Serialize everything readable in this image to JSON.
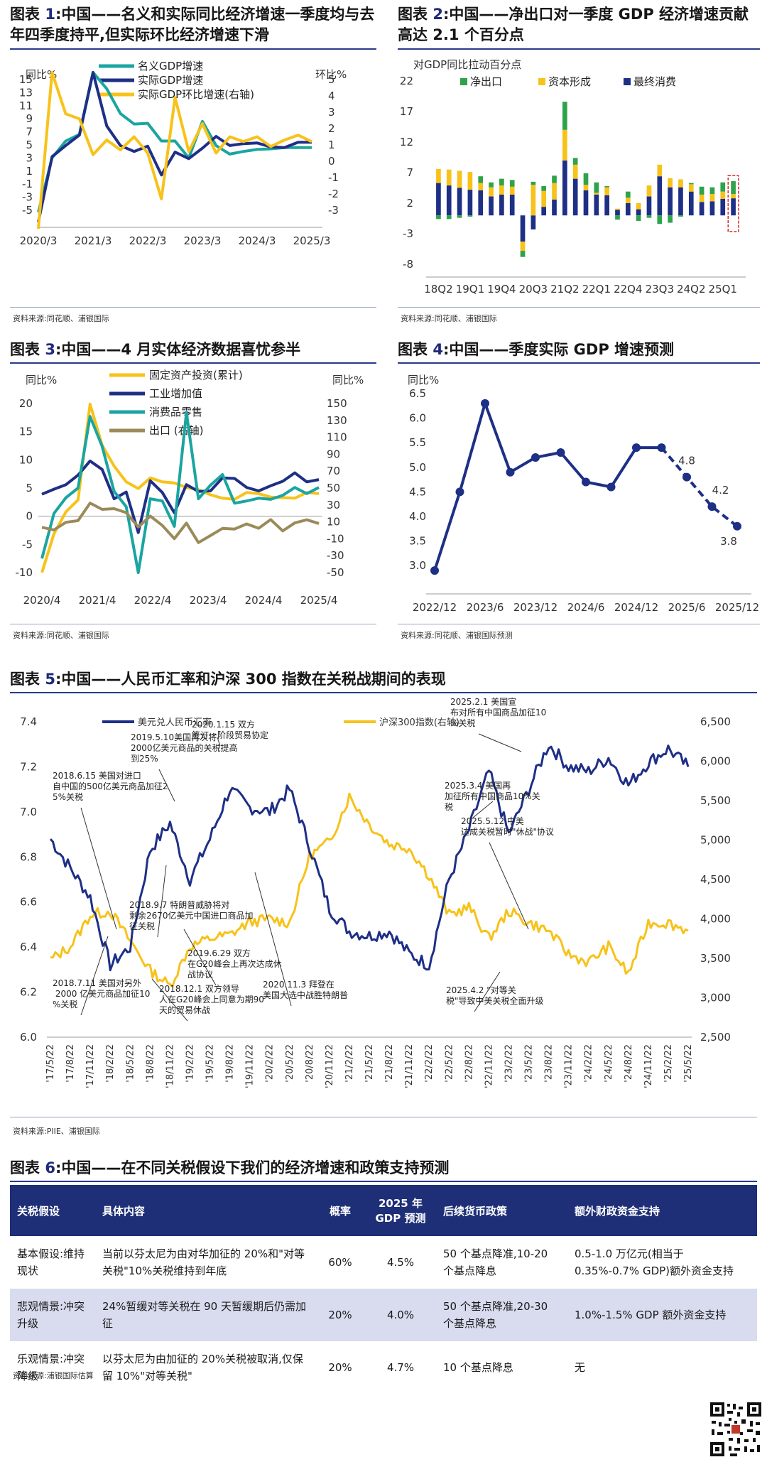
{
  "colors": {
    "navy": "#1e2f86",
    "teal": "#1aa5a0",
    "yellow": "#f7c21a",
    "green": "#2ea34a",
    "olive": "#9b8a5a",
    "rule": "#2a3a8c"
  },
  "fig1": {
    "prefix": "图表 ",
    "num": "1",
    "title": ":中国——名义和实际同比经济增速一季度均与去年四季度持平,但实际环比经济增速下滑",
    "left_axis_label": "同比%",
    "right_axis_label": "环比%",
    "legend": [
      "名义GDP增速",
      "实际GDP增速",
      "实际GDP环比增速(右轴)"
    ],
    "source": "资料来源:同花顺、浦银国际",
    "chart_data": {
      "type": "line",
      "x_ticks": [
        "2020/3",
        "2021/3",
        "2022/3",
        "2023/3",
        "2024/3",
        "2025/3"
      ],
      "y_ticks": [
        "15",
        "13",
        "11",
        "9",
        "7",
        "5",
        "3",
        "1",
        "-1",
        "-3",
        "-5"
      ],
      "y2_ticks": [
        "5",
        "4",
        "3",
        "2",
        "1",
        "0",
        "-1",
        "-2",
        "-3"
      ],
      "ylim": [
        -5,
        15
      ],
      "y2lim": [
        -3,
        5
      ],
      "series": [
        {
          "name": "名义GDP增速",
          "values": [
            -5.3,
            3.0,
            5.6,
            6.6,
            18.3,
            13.6,
            9.8,
            8.2,
            8.3,
            5.6,
            5.6,
            3.0,
            8.6,
            4.9,
            3.6,
            4.0,
            4.3,
            4.4,
            4.6,
            4.6,
            4.6
          ]
        },
        {
          "name": "实际GDP增速",
          "values": [
            -6.8,
            3.2,
            4.9,
            6.5,
            18.3,
            7.9,
            4.9,
            4.0,
            4.8,
            0.4,
            3.9,
            2.9,
            4.5,
            6.3,
            4.9,
            5.2,
            5.3,
            4.7,
            4.6,
            5.4,
            5.4
          ]
        },
        {
          "name": "实际GDP环比增速(右轴)",
          "values": [
            -10.0,
            11.0,
            2.9,
            2.6,
            0.4,
            1.3,
            0.7,
            1.5,
            0.5,
            -2.3,
            3.9,
            0.6,
            2.3,
            0.5,
            1.5,
            1.2,
            1.5,
            0.9,
            1.3,
            1.6,
            1.2
          ]
        }
      ]
    }
  },
  "fig2": {
    "prefix": "图表 ",
    "num": "2",
    "title": ":中国——净出口对一季度 GDP 经济增速贡献高达 2.1 个百分点",
    "axis_label": "对GDP同比拉动百分点",
    "legend": [
      "净出口",
      "资本形成",
      "最终消费"
    ],
    "source": "资料来源:同花顺、浦银国际",
    "chart_data": {
      "type": "bar",
      "stacked": true,
      "x_ticks": [
        "18Q2",
        "19Q1",
        "19Q4",
        "20Q3",
        "21Q2",
        "22Q1",
        "22Q4",
        "23Q3",
        "24Q2",
        "25Q1"
      ],
      "y_ticks": [
        "22",
        "17",
        "12",
        "7",
        "2",
        "-3",
        "-8"
      ],
      "ylim": [
        -8,
        22
      ],
      "categories": [
        "18Q1",
        "18Q2",
        "18Q3",
        "18Q4",
        "19Q1",
        "19Q2",
        "19Q3",
        "19Q4",
        "20Q1",
        "20Q2",
        "20Q3",
        "20Q4",
        "21Q1",
        "21Q2",
        "21Q3",
        "21Q4",
        "22Q1",
        "22Q2",
        "22Q3",
        "22Q4",
        "23Q1",
        "23Q2",
        "23Q3",
        "23Q4",
        "24Q1",
        "24Q2",
        "24Q3",
        "24Q4",
        "25Q1"
      ],
      "series": [
        {
          "name": "最终消费",
          "values": [
            5.3,
            4.9,
            4.5,
            4.2,
            4.1,
            3.1,
            3.4,
            3.4,
            -4.3,
            -2.3,
            1.4,
            2.6,
            9.0,
            6.0,
            4.1,
            3.4,
            3.3,
            0.9,
            2.0,
            1.0,
            3.1,
            6.4,
            4.6,
            4.6,
            3.9,
            2.2,
            2.3,
            2.7,
            2.8
          ]
        },
        {
          "name": "资本形成",
          "values": [
            2.3,
            2.6,
            2.8,
            2.9,
            1.2,
            1.5,
            1.5,
            1.3,
            -1.5,
            5.0,
            2.6,
            2.7,
            5.0,
            2.3,
            0.9,
            0.3,
            1.3,
            0.2,
            0.9,
            1.0,
            1.8,
            1.9,
            1.5,
            1.3,
            1.2,
            1.2,
            1.2,
            1.2,
            0.7
          ]
        },
        {
          "name": "净出口",
          "values": [
            -0.6,
            -0.6,
            -0.4,
            -0.2,
            1.1,
            0.8,
            1.1,
            1.1,
            -1.0,
            0.5,
            0.8,
            1.2,
            4.6,
            1.1,
            1.9,
            1.7,
            0.2,
            -0.7,
            1.0,
            -0.9,
            -0.4,
            -1.4,
            -1.2,
            -0.2,
            0.2,
            1.3,
            1.1,
            1.5,
            2.1
          ]
        }
      ]
    }
  },
  "fig3": {
    "prefix": "图表 ",
    "num": "3",
    "title": ":中国——4 月实体经济数据喜忧参半",
    "left_axis_label": "同比%",
    "right_axis_label": "同比%",
    "legend": [
      "固定资产投资(累计)",
      "工业增加值",
      "消费品零售",
      "出口 (右轴)"
    ],
    "source": "资料来源:同花顺、浦银国际",
    "chart_data": {
      "type": "line",
      "x_ticks": [
        "2020/4",
        "2021/4",
        "2022/4",
        "2023/4",
        "2024/4",
        "2025/4"
      ],
      "y_ticks": [
        "20",
        "15",
        "10",
        "5",
        "0",
        "-5",
        "-10"
      ],
      "y2_ticks": [
        "150",
        "130",
        "110",
        "90",
        "70",
        "50",
        "30",
        "10",
        "-10",
        "-30",
        "-50"
      ],
      "ylim": [
        -10,
        20
      ],
      "y2lim": [
        -50,
        150
      ],
      "series": [
        {
          "name": "固定资产投资(累计)",
          "values": [
            -10.3,
            -3.1,
            0.8,
            2.9,
            19.9,
            12.6,
            8.9,
            6.1,
            4.9,
            6.8,
            6.1,
            5.9,
            5.1,
            4.7,
            3.8,
            3.2,
            3.0,
            4.2,
            4.0,
            3.4,
            3.3,
            3.2,
            4.2,
            4.0
          ]
        },
        {
          "name": "工业增加值",
          "values": [
            3.9,
            4.8,
            5.6,
            7.3,
            9.8,
            8.3,
            3.1,
            4.3,
            -2.9,
            6.3,
            4.2,
            0.6,
            5.6,
            4.4,
            4.5,
            6.8,
            6.7,
            5.1,
            4.5,
            5.4,
            6.2,
            7.7,
            6.1,
            6.5
          ]
        },
        {
          "name": "消费品零售",
          "values": [
            -7.5,
            0.5,
            3.3,
            5.0,
            17.7,
            12.4,
            4.4,
            1.7,
            -11.1,
            3.1,
            2.7,
            -1.8,
            18.4,
            3.1,
            5.5,
            7.4,
            2.3,
            2.7,
            3.2,
            3.0,
            3.7,
            5.1,
            4.0,
            5.1
          ]
        },
        {
          "name": "出口 (右轴)",
          "values": [
            3.5,
            0.5,
            9.5,
            11.4,
            32.2,
            24.8,
            25.6,
            20.9,
            3.9,
            16.9,
            5.7,
            -9.9,
            8.5,
            -14.5,
            -6.2,
            2.3,
            1.5,
            7.6,
            2.4,
            12.7,
            -0.7,
            8.7,
            12.4,
            8.1
          ]
        }
      ]
    }
  },
  "fig4": {
    "prefix": "图表 ",
    "num": "4",
    "title": ":中国——季度实际 GDP 增速预测",
    "axis_label": "同比%",
    "source": "资料来源:同花顺、浦银国际预测",
    "chart_data": {
      "type": "line",
      "x_ticks": [
        "2022/12",
        "2023/6",
        "2023/12",
        "2024/6",
        "2024/12",
        "2025/6",
        "2025/12"
      ],
      "y_ticks": [
        "6.5",
        "6.0",
        "5.5",
        "5.0",
        "4.5",
        "4.0",
        "3.5",
        "3.0"
      ],
      "ylim": [
        2.8,
        6.5
      ],
      "categories": [
        "2022Q4",
        "2023Q1",
        "2023Q2",
        "2023Q3",
        "2023Q4",
        "2024Q1",
        "2024Q2",
        "2024Q3",
        "2024Q4",
        "2025Q1",
        "2025Q2",
        "2025Q3",
        "2025Q4"
      ],
      "actual": [
        2.9,
        4.5,
        6.3,
        4.9,
        5.2,
        5.3,
        4.7,
        4.6,
        5.4,
        5.4
      ],
      "forecast": [
        5.4,
        4.8,
        4.2,
        3.8
      ],
      "labels": [
        "4.8",
        "4.2",
        "3.8"
      ]
    }
  },
  "fig5": {
    "prefix": "图表 ",
    "num": "5",
    "title": ":中国——人民币汇率和沪深 300 指数在关税战期间的表现",
    "legend": [
      "美元兑人民币汇率",
      "沪深300指数(右轴)"
    ],
    "source": "资料来源:PIIE、浦银国际",
    "chart_data": {
      "type": "line",
      "y_ticks": [
        "7.4",
        "7.2",
        "7.0",
        "6.8",
        "6.6",
        "6.4",
        "6.2",
        "6.0"
      ],
      "y2_ticks": [
        "6,500",
        "6,000",
        "5,500",
        "5,000",
        "4,500",
        "4,000",
        "3,500",
        "3,000",
        "2,500"
      ],
      "ylim": [
        6.0,
        7.4
      ],
      "y2lim": [
        2500,
        6500
      ],
      "x_ticks": [
        "'17/5/22",
        "'17/8/22",
        "'17/11/22",
        "'18/2/22",
        "'18/5/22",
        "'18/8/22",
        "'18/11/22",
        "'19/2/22",
        "'19/5/22",
        "'19/8/22",
        "'19/11/22",
        "'20/2/22",
        "'20/5/22",
        "'20/8/22",
        "'20/11/22",
        "'21/2/22",
        "'21/5/22",
        "'21/8/22",
        "'21/11/22",
        "'22/2/22",
        "'22/5/22",
        "'22/8/22",
        "'22/11/22",
        "'23/2/22",
        "'23/5/22",
        "'23/8/22",
        "'23/11/22",
        "'24/2/22",
        "'24/5/22",
        "'24/8/22",
        "'24/11/22",
        "'25/2/22",
        "'25/5/22"
      ],
      "usdcny": [
        6.88,
        6.75,
        6.62,
        6.32,
        6.4,
        6.83,
        6.95,
        6.7,
        6.88,
        7.1,
        7.02,
        7.0,
        7.1,
        6.85,
        6.57,
        6.47,
        6.45,
        6.47,
        6.37,
        6.32,
        6.7,
        6.92,
        7.18,
        6.9,
        7.1,
        7.3,
        7.2,
        7.18,
        7.24,
        7.12,
        7.22,
        7.28,
        7.2
      ],
      "csi300": [
        3480,
        3650,
        4050,
        4100,
        3720,
        3350,
        3150,
        3650,
        3750,
        3800,
        3960,
        4000,
        3950,
        4800,
        4980,
        5550,
        5200,
        4950,
        4900,
        4550,
        4050,
        4150,
        3750,
        4100,
        3950,
        3850,
        3550,
        3450,
        3650,
        3300,
        3950,
        3950,
        3850
      ],
      "annotations": [
        "2018.6.15 美国对进口自中国的500亿美元商品加征25%关税",
        "2018.7.11 美国对另外 2000 亿美元商品加征10%关税",
        "2018.9.7 特朗普威胁将对剩余2670亿美元中国进口商品加征关税",
        "2018.12.1 双方领导人在G20峰会上同意为期90天的贸易休战",
        "2019.5.10美国再次将2000亿美元商品的关税提高到25%",
        "2019.6.29 双方在G20峰会上再次达成休战协议",
        "2020.1.15 双方签订一阶段贸易协定",
        "2020.11.3 拜登在美国大选中战胜特朗普",
        "2025.2.1 美国宣布对所有中国商品加征10%关税",
        "2025.3.4 美国再加征所有中国商品10%关税",
        "2025.5.12 中美达成关税暂时\"休战\"协议",
        "2025.4.2 \"对等关税\"导致中美关税全面升级"
      ]
    }
  },
  "fig6": {
    "prefix": "图表 ",
    "num": "6",
    "title": ":中国——在不同关税假设下我们的经济增速和政策支持预测",
    "headers": [
      "关税假设",
      "具体内容",
      "概率",
      "2025 年 GDP 预测",
      "后续货币政策",
      "额外财政资金支持"
    ],
    "rows": [
      [
        "基本假设:维持现状",
        "当前以芬太尼为由对华加征的 20%和\"对等关税\"10%关税维持到年底",
        "60%",
        "4.5%",
        "50 个基点降准,10-20 个基点降息",
        "0.5-1.0 万亿元(相当于 0.35%-0.7% GDP)额外资金支持"
      ],
      [
        "悲观情景:冲突升级",
        "24%暂缓对等关税在 90 天暂缓期后仍需加征",
        "20%",
        "4.0%",
        "50 个基点降准,20-30 个基点降息",
        "1.0%-1.5% GDP 额外资金支持"
      ],
      [
        "乐观情景:冲突降级",
        "以芬太尼为由加征的 20%关税被取消,仅保留 10%\"对等关税\"",
        "20%",
        "4.7%",
        "10 个基点降息",
        "无"
      ]
    ],
    "source": "资料来源:浦银国际估算"
  }
}
